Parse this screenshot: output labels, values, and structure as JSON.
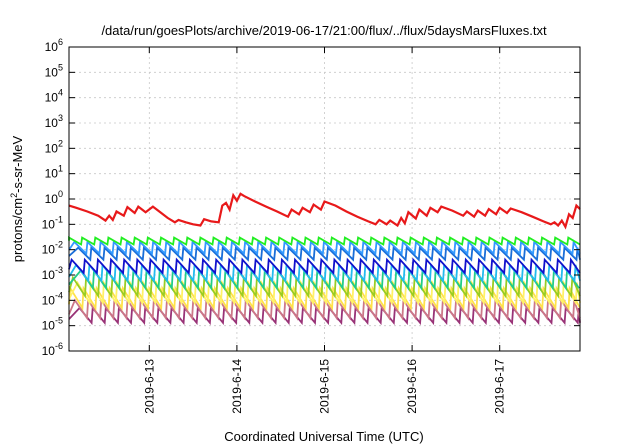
{
  "chart_data": {
    "type": "line",
    "title": "/data/run/goesPlots/archive/2019-06-17/21:00/flux/../flux/5daysMarsFluxes.txt",
    "xlabel": "Coordinated Universal Time (UTC)",
    "ylabel": {
      "base": "protons/cm",
      "sup": "2",
      "rest": "-s-sr-MeV"
    },
    "yscale": "log",
    "ylim": [
      1e-06,
      1000000.0
    ],
    "yticks": [
      {
        "base": "10",
        "exp": "-6",
        "value": 1e-06
      },
      {
        "base": "10",
        "exp": "-5",
        "value": 1e-05
      },
      {
        "base": "10",
        "exp": "-4",
        "value": 0.0001
      },
      {
        "base": "10",
        "exp": "-3",
        "value": 0.001
      },
      {
        "base": "10",
        "exp": "-2",
        "value": 0.01
      },
      {
        "base": "10",
        "exp": "-1",
        "value": 0.1
      },
      {
        "base": "10",
        "exp": "0",
        "value": 1
      },
      {
        "base": "10",
        "exp": "1",
        "value": 10
      },
      {
        "base": "10",
        "exp": "2",
        "value": 100
      },
      {
        "base": "10",
        "exp": "3",
        "value": 1000
      },
      {
        "base": "10",
        "exp": "4",
        "value": 10000
      },
      {
        "base": "10",
        "exp": "5",
        "value": 100000
      },
      {
        "base": "10",
        "exp": "6",
        "value": 1000000
      }
    ],
    "xlim": [
      "2019-06-12 02:00",
      "2019-06-17 22:00"
    ],
    "xticks": [
      {
        "label": "2019-6-13",
        "value": "2019-06-13 00:00"
      },
      {
        "label": "2019-6-14",
        "value": "2019-06-14 00:00"
      },
      {
        "label": "2019-6-15",
        "value": "2019-06-15 00:00"
      },
      {
        "label": "2019-6-16",
        "value": "2019-06-16 00:00"
      },
      {
        "label": "2019-6-17",
        "value": "2019-06-17 00:00"
      }
    ],
    "grid": true,
    "legend": "none",
    "series": [
      {
        "color": "#e8191a",
        "width": 2.2,
        "points": [
          [
            "2019-06-12 02:00",
            0.55
          ],
          [
            "2019-06-12 04:00",
            0.45
          ],
          [
            "2019-06-12 07:00",
            0.32
          ],
          [
            "2019-06-12 10:00",
            0.22
          ],
          [
            "2019-06-12 12:00",
            0.14
          ],
          [
            "2019-06-12 13:00",
            0.22
          ],
          [
            "2019-06-12 14:00",
            0.15
          ],
          [
            "2019-06-12 15:00",
            0.32
          ],
          [
            "2019-06-12 17:00",
            0.22
          ],
          [
            "2019-06-12 18:00",
            0.48
          ],
          [
            "2019-06-12 20:00",
            0.28
          ],
          [
            "2019-06-12 21:00",
            0.5
          ],
          [
            "2019-06-12 23:00",
            0.3
          ],
          [
            "2019-06-13 01:00",
            0.5
          ],
          [
            "2019-06-13 03:00",
            0.3
          ],
          [
            "2019-06-13 05:00",
            0.18
          ],
          [
            "2019-06-13 07:00",
            0.12
          ],
          [
            "2019-06-13 08:00",
            0.15
          ],
          [
            "2019-06-13 10:00",
            0.12
          ],
          [
            "2019-06-13 12:00",
            0.1
          ],
          [
            "2019-06-13 14:00",
            0.09
          ],
          [
            "2019-06-13 15:00",
            0.16
          ],
          [
            "2019-06-13 17:00",
            0.13
          ],
          [
            "2019-06-13 19:00",
            0.12
          ],
          [
            "2019-06-13 20:00",
            0.55
          ],
          [
            "2019-06-13 21:00",
            0.7
          ],
          [
            "2019-06-13 22:00",
            0.38
          ],
          [
            "2019-06-13 23:00",
            1.4
          ],
          [
            "2019-06-14 00:00",
            0.85
          ],
          [
            "2019-06-14 01:00",
            1.6
          ],
          [
            "2019-06-14 02:00",
            1.3
          ],
          [
            "2019-06-14 05:00",
            0.8
          ],
          [
            "2019-06-14 08:00",
            0.5
          ],
          [
            "2019-06-14 11:00",
            0.32
          ],
          [
            "2019-06-14 14:00",
            0.2
          ],
          [
            "2019-06-14 15:00",
            0.38
          ],
          [
            "2019-06-14 17:00",
            0.25
          ],
          [
            "2019-06-14 18:00",
            0.45
          ],
          [
            "2019-06-14 20:00",
            0.3
          ],
          [
            "2019-06-14 21:00",
            0.6
          ],
          [
            "2019-06-14 23:00",
            0.38
          ],
          [
            "2019-06-15 00:00",
            0.8
          ],
          [
            "2019-06-15 03:00",
            0.55
          ],
          [
            "2019-06-15 06:00",
            0.32
          ],
          [
            "2019-06-15 09:00",
            0.2
          ],
          [
            "2019-06-15 12:00",
            0.13
          ],
          [
            "2019-06-15 14:00",
            0.1
          ],
          [
            "2019-06-15 15:00",
            0.15
          ],
          [
            "2019-06-15 17:00",
            0.1
          ],
          [
            "2019-06-15 18:00",
            0.14
          ],
          [
            "2019-06-15 20:00",
            0.09
          ],
          [
            "2019-06-15 21:00",
            0.18
          ],
          [
            "2019-06-15 22:00",
            0.11
          ],
          [
            "2019-06-15 23:00",
            0.3
          ],
          [
            "2019-06-16 01:00",
            0.17
          ],
          [
            "2019-06-16 02:00",
            0.38
          ],
          [
            "2019-06-16 04:00",
            0.22
          ],
          [
            "2019-06-16 05:00",
            0.45
          ],
          [
            "2019-06-16 07:00",
            0.3
          ],
          [
            "2019-06-16 08:00",
            0.5
          ],
          [
            "2019-06-16 11:00",
            0.35
          ],
          [
            "2019-06-16 14:00",
            0.22
          ],
          [
            "2019-06-16 15:00",
            0.32
          ],
          [
            "2019-06-16 17:00",
            0.2
          ],
          [
            "2019-06-16 18:00",
            0.35
          ],
          [
            "2019-06-16 20:00",
            0.22
          ],
          [
            "2019-06-16 21:00",
            0.4
          ],
          [
            "2019-06-16 23:00",
            0.25
          ],
          [
            "2019-06-17 00:00",
            0.45
          ],
          [
            "2019-06-17 02:00",
            0.28
          ],
          [
            "2019-06-17 03:00",
            0.42
          ],
          [
            "2019-06-17 06:00",
            0.3
          ],
          [
            "2019-06-17 09:00",
            0.2
          ],
          [
            "2019-06-17 12:00",
            0.13
          ],
          [
            "2019-06-17 14:00",
            0.1
          ],
          [
            "2019-06-17 15:00",
            0.12
          ],
          [
            "2019-06-17 16:00",
            0.09
          ],
          [
            "2019-06-17 17:00",
            0.14
          ],
          [
            "2019-06-17 18:00",
            0.08
          ],
          [
            "2019-06-17 19:00",
            0.25
          ],
          [
            "2019-06-17 20:00",
            0.18
          ],
          [
            "2019-06-17 21:00",
            0.55
          ],
          [
            "2019-06-17 22:00",
            0.4
          ]
        ]
      },
      {
        "color": "#22ee22",
        "width": 1.8,
        "sawtooth": {
          "peak": 0.03,
          "trough": 0.016,
          "period_hours": 3.6,
          "phase": 0.0
        }
      },
      {
        "color": "#3399ff",
        "width": 1.8,
        "sawtooth": {
          "peak": 0.02,
          "trough": 0.007,
          "period_hours": 3.6,
          "phase": 0.4
        }
      },
      {
        "color": "#1a6ed8",
        "width": 1.8,
        "sawtooth": {
          "peak": 0.012,
          "trough": 0.004,
          "period_hours": 3.6,
          "phase": 0.7
        }
      },
      {
        "color": "#1111cc",
        "width": 1.8,
        "sawtooth": {
          "peak": 0.004,
          "trough": 0.0012,
          "period_hours": 3.6,
          "phase": 0.2
        }
      },
      {
        "color": "#22bbee",
        "width": 1.8,
        "sawtooth": {
          "peak": 0.0025,
          "trough": 0.0006,
          "period_hours": 3.6,
          "phase": 0.55
        }
      },
      {
        "color": "#22cc88",
        "width": 1.8,
        "sawtooth": {
          "peak": 0.0015,
          "trough": 0.0003,
          "period_hours": 3.6,
          "phase": 0.9
        }
      },
      {
        "color": "#99cc22",
        "width": 1.8,
        "sawtooth": {
          "peak": 0.0008,
          "trough": 0.00015,
          "period_hours": 3.6,
          "phase": 0.3
        }
      },
      {
        "color": "#fff266",
        "width": 1.8,
        "sawtooth": {
          "peak": 0.0005,
          "trough": 8e-05,
          "period_hours": 3.6,
          "phase": 0.65
        }
      },
      {
        "color": "#ffe14a",
        "width": 1.8,
        "sawtooth": {
          "peak": 0.0003,
          "trough": 5e-05,
          "period_hours": 3.6,
          "phase": 0.1
        }
      },
      {
        "color": "#cc7788",
        "width": 1.8,
        "sawtooth": {
          "peak": 0.0001,
          "trough": 2e-05,
          "period_hours": 3.6,
          "phase": 0.45
        }
      },
      {
        "color": "#993377",
        "width": 1.8,
        "sawtooth": {
          "peak": 5e-05,
          "trough": 1.3e-05,
          "period_hours": 3.6,
          "phase": 0.8
        }
      }
    ]
  }
}
